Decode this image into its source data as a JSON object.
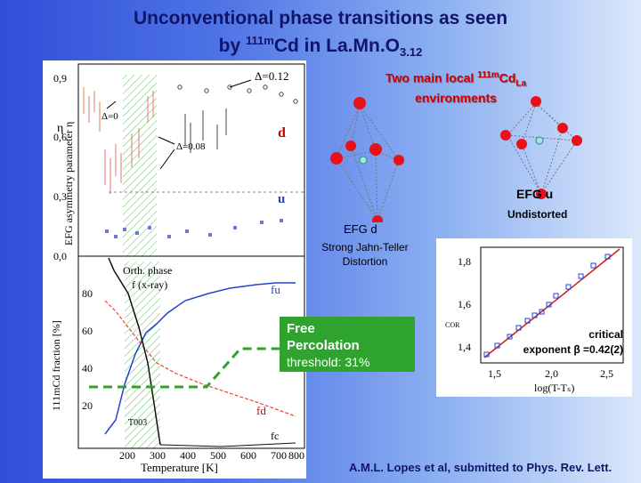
{
  "title": {
    "line1": "Unconventional phase transitions as seen",
    "line2_pre": "by ",
    "line2_sup": "111m",
    "line2_mid": "Cd in La.Mn.O",
    "line2_sub": "3.12"
  },
  "top_plot": {
    "ylabel": "EFG asymmetry parameter η",
    "eta_symbol": "η",
    "yticks": [
      "0,9",
      "0,6",
      "0,3",
      "0,0"
    ],
    "annotations": {
      "delta_012": "Δ=0.12",
      "delta_0": "Δ=0",
      "delta_008": "Δ=0.08",
      "d": "d",
      "u": "u"
    }
  },
  "bottom_plot": {
    "ylabel": "111mCd fraction [%]",
    "yticks": [
      "80",
      "60",
      "40",
      "20"
    ],
    "xticks": [
      "200",
      "300",
      "400",
      "500",
      "600",
      "700",
      "800"
    ],
    "xlabel": "Temperature [K]",
    "orth_phase": "Orth. phase",
    "orth_xray": "f (x-ray)",
    "fu": "fu",
    "fd": "fd",
    "fc": "fc",
    "t003": "T003"
  },
  "right": {
    "env_title_pre": "Two main local ",
    "env_title_sup": "111m",
    "env_title_mid": "Cd",
    "env_title_sub": "La",
    "env_title_line2": "environments",
    "efg_d": "EFG d",
    "strong_jt": "Strong Jahn-Teller Distortion",
    "efg_u": "EFG u",
    "undistorted": "Undistorted",
    "free_perc_line1": "Free",
    "free_perc_line2": "Percolation",
    "threshold": "threshold: 31%",
    "critical_line1": "critical",
    "critical_line2": "exponent β =0.42(2)",
    "reference": "A.M.L. Lopes et al, submitted to Phys. Rev. Lett."
  },
  "inset": {
    "yticks": [
      "1,8",
      "1,6",
      "1,4"
    ],
    "xticks": [
      "1,5",
      "2,0",
      "2,5"
    ],
    "xlabel": "log(T-Tₛ)",
    "ylabel_part": "COR"
  },
  "colors": {
    "title": "#11156a",
    "red_accent": "#cc0000",
    "green_box": "#2ea32e",
    "series_u": "#2244cc",
    "series_d": "#e04a3a"
  }
}
